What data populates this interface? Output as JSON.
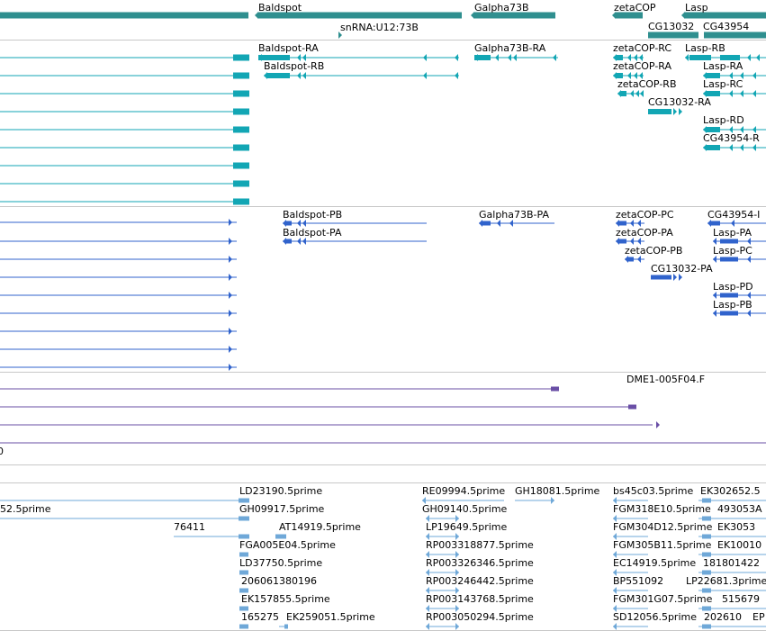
{
  "colors": {
    "gene": "#2f8f8f",
    "transcript_flybase": "#12a6b4",
    "transcript_refseq": "#3063cc",
    "cdna": "#6a4fa6",
    "est": "#6fa8d8",
    "separator": "#c8c8c8",
    "label": "#000000"
  },
  "tracks": {
    "genes": {
      "labels": [
        "Baldspot",
        "snRNA:U12:73B",
        "Galpha73B",
        "zetaCOP",
        "Lasp",
        "CG13032",
        "CG43954"
      ]
    },
    "flybase_transcripts": {
      "labels": [
        "Baldspot-RA",
        "Baldspot-RB",
        "Galpha73B-RA",
        "zetaCOP-RC",
        "zetaCOP-RA",
        "zetaCOP-RB",
        "CG13032-RA",
        "Lasp-RB",
        "Lasp-RA",
        "Lasp-RC",
        "Lasp-RD",
        "CG43954-R"
      ]
    },
    "refseq_transcripts": {
      "labels": [
        "Baldspot-PB",
        "Baldspot-PA",
        "Galpha73B-PA",
        "zetaCOP-PC",
        "zetaCOP-PA",
        "zetaCOP-PB",
        "CG13032-PA",
        "CG43954-I",
        "Lasp-PA",
        "Lasp-PC",
        "Lasp-PD",
        "Lasp-PB"
      ]
    },
    "cdna": {
      "labels": [
        "DME1-005F04.F",
        "0"
      ]
    },
    "est": {
      "labels": [
        "52.5prime",
        "76411",
        "LD23190.5prime",
        "GH09917.5prime",
        "AT14919.5prime",
        "FGA005E04.5prime",
        "LD37750.5prime",
        "206061380196",
        "EK157855.5prime",
        "165275",
        "EK259051.5prime",
        "RE09994.5prime",
        "GH18081.5prime",
        "GH09140.5prime",
        "LP19649.5prime",
        "RP003318877.5prime",
        "RP003326346.5prime",
        "RP003246442.5prime",
        "RP003143768.5prime",
        "RP003050294.5prime",
        "bs45c03.5prime",
        "EK302652.5",
        "FGM318E10.5prime",
        "493053A",
        "FGM304D12.5prime",
        "EK3053",
        "FGM305B11.5prime",
        "EK10010",
        "EC14919.5prime",
        "181801422",
        "BP551092",
        "LP22681.3prime",
        "FGM301G07.5prime",
        "515679",
        "SD12056.5prime",
        "202610",
        "EP"
      ]
    }
  }
}
